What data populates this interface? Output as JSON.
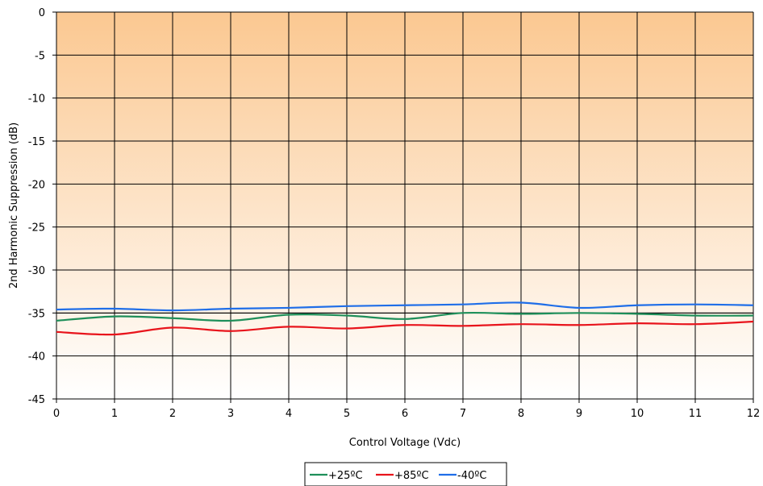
{
  "chart_data": {
    "type": "line",
    "xlabel": "Control Voltage (Vdc)",
    "ylabel": "2nd Harmonic Suppression (dB)",
    "xlim": [
      0,
      12
    ],
    "ylim": [
      -45,
      0
    ],
    "x_ticks": [
      "0",
      "1",
      "2",
      "3",
      "4",
      "5",
      "6",
      "7",
      "8",
      "9",
      "10",
      "11",
      "12"
    ],
    "y_ticks": [
      "0",
      "-5",
      "-10",
      "-15",
      "-20",
      "-25",
      "-30",
      "-35",
      "-40",
      "-45"
    ],
    "grid": true,
    "legend_position": "bottom-center",
    "background": "orange-to-white vertical gradient",
    "x": [
      0,
      1,
      2,
      3,
      4,
      5,
      6,
      7,
      8,
      9,
      10,
      11,
      12
    ],
    "series": [
      {
        "name": "+25ºC",
        "color": "#1e8f5a",
        "values": [
          -35.9,
          -35.4,
          -35.6,
          -35.9,
          -35.2,
          -35.3,
          -35.7,
          -35.0,
          -35.1,
          -35.0,
          -35.1,
          -35.3,
          -35.3
        ]
      },
      {
        "name": "+85ºC",
        "color": "#e8141c",
        "values": [
          -37.2,
          -37.5,
          -36.7,
          -37.1,
          -36.6,
          -36.8,
          -36.4,
          -36.5,
          -36.3,
          -36.4,
          -36.2,
          -36.3,
          -36.0
        ]
      },
      {
        "name": "-40ºC",
        "color": "#1f6ee8",
        "values": [
          -34.6,
          -34.5,
          -34.7,
          -34.5,
          -34.4,
          -34.2,
          -34.1,
          -34.0,
          -33.8,
          -34.4,
          -34.1,
          -34.0,
          -34.1
        ]
      }
    ],
    "reference_line": -35.0
  }
}
